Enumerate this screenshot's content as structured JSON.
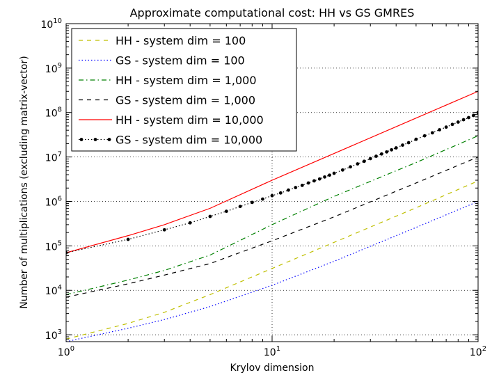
{
  "chart_data": {
    "type": "line",
    "title": "Approximate computational cost: HH vs GS GMRES",
    "xlabel": "Krylov dimension",
    "ylabel": "Number of multiplications (excluding matrix-vector)",
    "x_scale": "log",
    "y_scale": "log",
    "xlim": [
      1,
      100
    ],
    "ylim": [
      700,
      10000000000
    ],
    "grid": true,
    "legend_position": "top-left",
    "x_ticks": [
      {
        "value": 1,
        "base": "10",
        "exp": "0"
      },
      {
        "value": 10,
        "base": "10",
        "exp": "1"
      },
      {
        "value": 100,
        "base": "10",
        "exp": "2"
      }
    ],
    "y_ticks": [
      {
        "value": 1000,
        "base": "10",
        "exp": "3"
      },
      {
        "value": 10000,
        "base": "10",
        "exp": "4"
      },
      {
        "value": 100000,
        "base": "10",
        "exp": "5"
      },
      {
        "value": 1000000,
        "base": "10",
        "exp": "6"
      },
      {
        "value": 10000000,
        "base": "10",
        "exp": "7"
      },
      {
        "value": 100000000,
        "base": "10",
        "exp": "8"
      },
      {
        "value": 1000000000,
        "base": "10",
        "exp": "9"
      },
      {
        "value": 10000000000,
        "base": "10",
        "exp": "10"
      }
    ],
    "series": [
      {
        "name": "HH - system dim = 100",
        "color": "#bfbf00",
        "style": "dashed",
        "x": [
          1,
          2,
          3,
          5,
          10,
          20,
          50,
          100
        ],
        "y": [
          800,
          1800,
          3200,
          8000,
          31000,
          120000,
          720000,
          2900000
        ]
      },
      {
        "name": "GS - system dim = 100",
        "color": "#0000ff",
        "style": "dotted",
        "x": [
          1,
          2,
          3,
          5,
          10,
          20,
          50,
          100
        ],
        "y": [
          700,
          1400,
          2200,
          4300,
          13000,
          45000,
          260000,
          1000000
        ]
      },
      {
        "name": "HH - system dim = 1,000",
        "color": "#008000",
        "style": "dashdot",
        "x": [
          1,
          2,
          3,
          5,
          10,
          20,
          50,
          100
        ],
        "y": [
          8000,
          17000,
          28000,
          62000,
          300000,
          1300000,
          7500000,
          30000000
        ]
      },
      {
        "name": "GS - system dim = 1,000",
        "color": "#000000",
        "style": "dashed",
        "x": [
          1,
          2,
          3,
          5,
          10,
          20,
          50,
          100
        ],
        "y": [
          7000,
          14000,
          22000,
          40000,
          130000,
          450000,
          2600000,
          10000000
        ]
      },
      {
        "name": "HH - system dim = 10,000",
        "color": "#ff0000",
        "style": "solid",
        "x": [
          1,
          2,
          3,
          5,
          10,
          20,
          50,
          100
        ],
        "y": [
          70000,
          170000,
          300000,
          700000,
          3000000,
          12000000,
          75000000,
          300000000
        ]
      },
      {
        "name": "GS - system dim = 10,000",
        "color": "#000000",
        "style": "dotted-markers",
        "x": [
          1,
          2,
          3,
          4,
          5,
          6,
          7,
          8,
          9,
          10,
          11,
          12,
          13,
          14,
          15,
          16,
          17,
          18,
          19,
          20,
          22,
          24,
          26,
          28,
          30,
          32,
          34,
          36,
          38,
          40,
          43,
          46,
          50,
          55,
          60,
          65,
          70,
          75,
          80,
          85,
          90,
          95,
          100
        ],
        "y": [
          70000,
          140000,
          230000,
          330000,
          460000,
          600000,
          770000,
          950000,
          1130000,
          1350000,
          1550000,
          1800000,
          2050000,
          2300000,
          2600000,
          2900000,
          3200000,
          3550000,
          3900000,
          4300000,
          5100000,
          6000000,
          7000000,
          8000000,
          9200000,
          10400000,
          11700000,
          13000000,
          14500000,
          16000000,
          18500000,
          21000000,
          25000000,
          30000000,
          35000000,
          41000000,
          47000000,
          54000000,
          61000000,
          69000000,
          77000000,
          86000000,
          100000000
        ]
      }
    ]
  }
}
